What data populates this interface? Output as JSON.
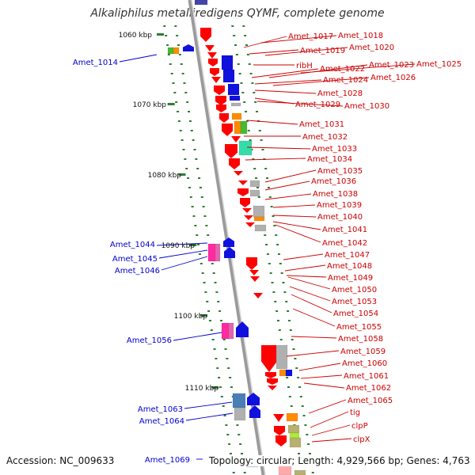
{
  "header": {
    "title": "Alkaliphilus metalliredigens QYMF, complete genome"
  },
  "footer": {
    "accession": "Accession: NC_009633",
    "summary": "Topology: circular; Length: 4,929,566 bp; Genes: 4,763"
  },
  "colors": {
    "backbone": "#9a9a9a",
    "tick": "#2e7d32",
    "left_label": "#0000cc",
    "right_label": "#cc0000",
    "gene_red": "#ff0000",
    "gene_blue": "#1111dd",
    "gene_orange": "#ff8c00",
    "gene_gray": "#b0b0b0",
    "gene_teal": "#33ddaa",
    "gene_green": "#44bb33",
    "gene_magenta": "#ff2aa0",
    "gene_steelblue": "#4a7fb5",
    "gene_olive": "#b8b070",
    "gene_lime": "#aaee33"
  },
  "scale_ticks": [
    "1060 kbp",
    "1070 kbp",
    "1080 kbp",
    "1090 kbp",
    "1100 kbp",
    "1110 kbp"
  ],
  "left_genes": [
    "Amet_1014",
    "Amet_1044",
    "Amet_1045",
    "Amet_1046",
    "Amet_1056",
    "Amet_1063",
    "Amet_1064",
    "Amet_1069"
  ],
  "right_genes": [
    "Amet_1017",
    "Amet_1018",
    "Amet_1019",
    "Amet_1020",
    "ribH",
    "Amet_1022",
    "Amet_1023",
    "Amet_1025",
    "Amet_1024",
    "Amet_1026",
    "Amet_1028",
    "Amet_1029",
    "Amet_1030",
    "Amet_1031",
    "Amet_1032",
    "Amet_1033",
    "Amet_1034",
    "Amet_1035",
    "Amet_1036",
    "Amet_1038",
    "Amet_1039",
    "Amet_1040",
    "Amet_1041",
    "Amet_1042",
    "Amet_1047",
    "Amet_1048",
    "Amet_1049",
    "Amet_1050",
    "Amet_1053",
    "Amet_1054",
    "Amet_1055",
    "Amet_1058",
    "Amet_1059",
    "Amet_1060",
    "Amet_1061",
    "Amet_1062",
    "Amet_1065",
    "tig",
    "clpP",
    "clpX"
  ]
}
